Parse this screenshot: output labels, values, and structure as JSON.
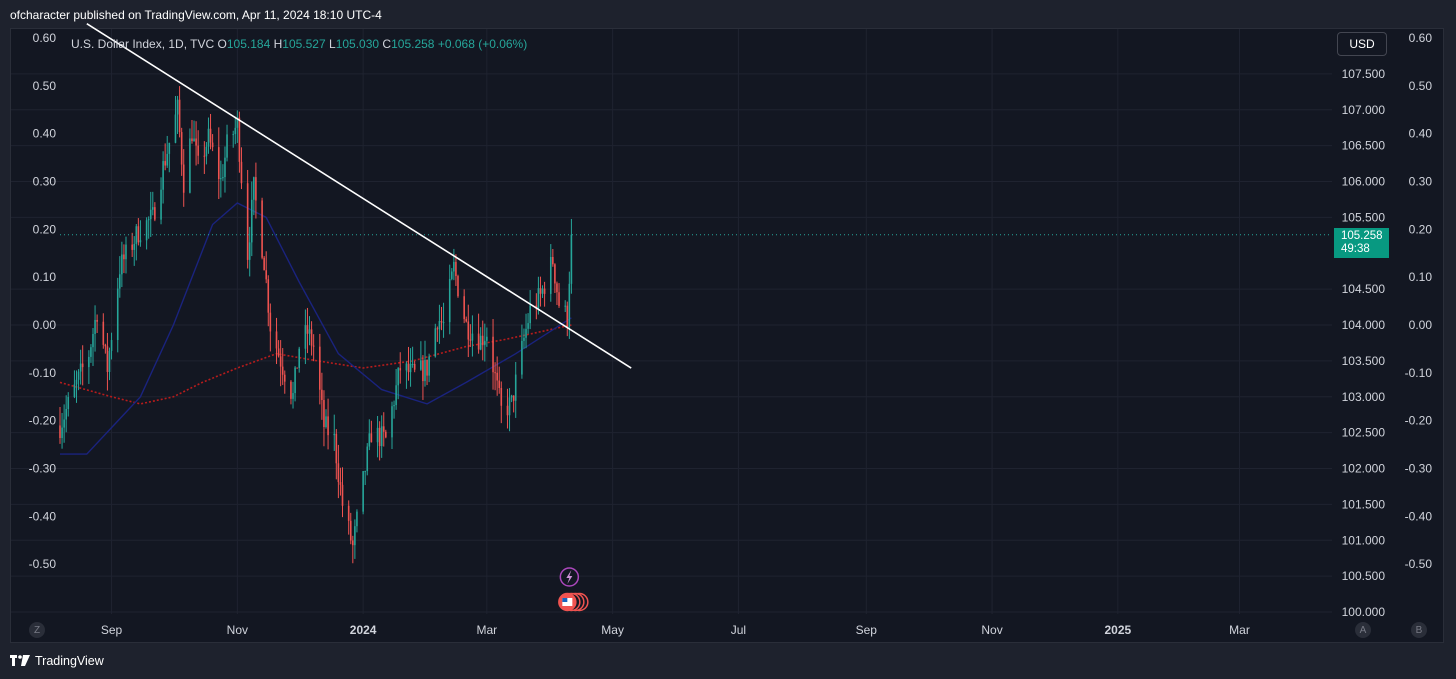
{
  "header": {
    "published_text": "ofcharacter published on TradingView.com, Apr 11, 2024 18:10 UTC-4"
  },
  "legend": {
    "symbol": "U.S. Dollar Index, 1D, TVC",
    "open_label": "O",
    "open": "105.184",
    "high_label": "H",
    "high": "105.527",
    "low_label": "L",
    "low": "105.030",
    "close_label": "C",
    "close": "105.258",
    "change": "+0.068 (+0.06%)"
  },
  "currency_button": "USD",
  "price_tag": {
    "price": "105.258",
    "countdown": "49:38"
  },
  "footer": {
    "brand": "TradingView"
  },
  "axis_buttons": {
    "left": "Z",
    "auto": "A",
    "right": "B"
  },
  "colors": {
    "up": "#26a69a",
    "down": "#ef5350",
    "ma_long": "#b71c1c",
    "ma_short": "#1a237e",
    "trendline": "#ffffff",
    "background": "#131722"
  },
  "chart_data": {
    "type": "candlestick",
    "symbol": "U.S. Dollar Index",
    "interval": "1D",
    "x_ticks": [
      {
        "label": "Sep",
        "date": "2023-09-01"
      },
      {
        "label": "Nov",
        "date": "2023-11-01"
      },
      {
        "label": "2024",
        "date": "2024-01-01",
        "bold": true
      },
      {
        "label": "Mar",
        "date": "2024-03-01"
      },
      {
        "label": "May",
        "date": "2024-05-01"
      },
      {
        "label": "Jul",
        "date": "2024-07-01"
      },
      {
        "label": "Sep",
        "date": "2024-09-01"
      },
      {
        "label": "Nov",
        "date": "2024-11-01"
      },
      {
        "label": "2025",
        "date": "2025-01-01",
        "bold": true
      },
      {
        "label": "Mar",
        "date": "2025-03-01"
      }
    ],
    "x_range": [
      "2023-08-07",
      "2025-04-10"
    ],
    "price_axis": {
      "ylim": [
        100.0,
        108.0
      ],
      "ticks": [
        "107.500",
        "107.000",
        "106.500",
        "106.000",
        "105.500",
        "104.500",
        "104.000",
        "103.500",
        "103.000",
        "102.500",
        "102.000",
        "101.500",
        "101.000",
        "100.500",
        "100.000"
      ],
      "tick_values": [
        107.5,
        107.0,
        106.5,
        106.0,
        105.5,
        104.5,
        104.0,
        103.5,
        103.0,
        102.5,
        102.0,
        101.5,
        101.0,
        100.5,
        100.0
      ]
    },
    "percent_axis": {
      "ylim": [
        -0.6,
        0.6
      ],
      "ticks": [
        "0.60",
        "0.50",
        "0.40",
        "0.30",
        "0.20",
        "0.10",
        "0.00",
        "-0.10",
        "-0.20",
        "-0.30",
        "-0.40",
        "-0.50"
      ],
      "tick_values": [
        0.6,
        0.5,
        0.4,
        0.3,
        0.2,
        0.1,
        0.0,
        -0.1,
        -0.2,
        -0.3,
        -0.4,
        -0.5
      ]
    },
    "last_close": 105.258,
    "anchors": [
      [
        "2023-08-07",
        102.6
      ],
      [
        "2023-08-14",
        103.1
      ],
      [
        "2023-08-21",
        103.6
      ],
      [
        "2023-08-25",
        104.2
      ],
      [
        "2023-08-30",
        103.4
      ],
      [
        "2023-09-05",
        104.8
      ],
      [
        "2023-09-14",
        105.3
      ],
      [
        "2023-09-21",
        105.5
      ],
      [
        "2023-09-26",
        106.2
      ],
      [
        "2023-10-03",
        107.0
      ],
      [
        "2023-10-06",
        106.0
      ],
      [
        "2023-10-10",
        106.7
      ],
      [
        "2023-10-13",
        106.2
      ],
      [
        "2023-10-18",
        106.6
      ],
      [
        "2023-10-24",
        106.0
      ],
      [
        "2023-10-27",
        106.5
      ],
      [
        "2023-11-01",
        106.8
      ],
      [
        "2023-11-06",
        105.0
      ],
      [
        "2023-11-09",
        105.9
      ],
      [
        "2023-11-14",
        104.9
      ],
      [
        "2023-11-17",
        104.0
      ],
      [
        "2023-11-21",
        103.6
      ],
      [
        "2023-11-28",
        103.0
      ],
      [
        "2023-12-01",
        103.7
      ],
      [
        "2023-12-05",
        103.9
      ],
      [
        "2023-12-08",
        103.7
      ],
      [
        "2023-12-13",
        102.6
      ],
      [
        "2023-12-18",
        102.4
      ],
      [
        "2023-12-22",
        101.5
      ],
      [
        "2023-12-27",
        100.9
      ],
      [
        "2024-01-02",
        102.0
      ],
      [
        "2024-01-05",
        102.5
      ],
      [
        "2024-01-12",
        102.4
      ],
      [
        "2024-01-19",
        103.4
      ],
      [
        "2024-01-26",
        103.3
      ],
      [
        "2024-02-01",
        103.4
      ],
      [
        "2024-02-06",
        104.1
      ],
      [
        "2024-02-09",
        104.0
      ],
      [
        "2024-02-14",
        104.8
      ],
      [
        "2024-02-20",
        104.0
      ],
      [
        "2024-02-27",
        103.8
      ],
      [
        "2024-03-01",
        103.9
      ],
      [
        "2024-03-08",
        102.8
      ],
      [
        "2024-03-13",
        102.9
      ],
      [
        "2024-03-19",
        103.8
      ],
      [
        "2024-03-22",
        104.2
      ],
      [
        "2024-03-27",
        104.4
      ],
      [
        "2024-04-02",
        104.9
      ],
      [
        "2024-04-05",
        104.3
      ],
      [
        "2024-04-09",
        104.1
      ],
      [
        "2024-04-11",
        105.258
      ]
    ],
    "moving_averages": [
      {
        "style": "dotted",
        "color_key": "ma_long",
        "points": [
          [
            "2023-08-07",
            103.2
          ],
          [
            "2023-09-01",
            103.0
          ],
          [
            "2023-09-15",
            102.9
          ],
          [
            "2023-10-01",
            103.0
          ],
          [
            "2023-10-15",
            103.2
          ],
          [
            "2023-11-01",
            103.4
          ],
          [
            "2023-11-20",
            103.6
          ],
          [
            "2023-12-10",
            103.5
          ],
          [
            "2024-01-01",
            103.4
          ],
          [
            "2024-01-25",
            103.5
          ],
          [
            "2024-02-20",
            103.7
          ],
          [
            "2024-03-10",
            103.8
          ],
          [
            "2024-04-11",
            104.0
          ]
        ]
      },
      {
        "style": "solid",
        "color_key": "ma_short",
        "points": [
          [
            "2023-08-07",
            102.2
          ],
          [
            "2023-08-20",
            102.2
          ],
          [
            "2023-09-15",
            103.0
          ],
          [
            "2023-10-01",
            104.0
          ],
          [
            "2023-10-20",
            105.4
          ],
          [
            "2023-11-01",
            105.7
          ],
          [
            "2023-11-15",
            105.5
          ],
          [
            "2023-12-01",
            104.6
          ],
          [
            "2023-12-20",
            103.6
          ],
          [
            "2024-01-10",
            103.1
          ],
          [
            "2024-02-01",
            102.9
          ],
          [
            "2024-02-20",
            103.2
          ],
          [
            "2024-03-15",
            103.6
          ],
          [
            "2024-04-11",
            104.1
          ]
        ]
      }
    ],
    "trendline": {
      "from": [
        "2023-08-20",
        108.2
      ],
      "to": [
        "2024-05-10",
        103.4
      ]
    },
    "events": [
      {
        "date": "2024-04-10",
        "kind": "lightning-event-icon"
      },
      {
        "date": "2024-04-10",
        "kind": "us-flag-event-icons"
      }
    ]
  }
}
